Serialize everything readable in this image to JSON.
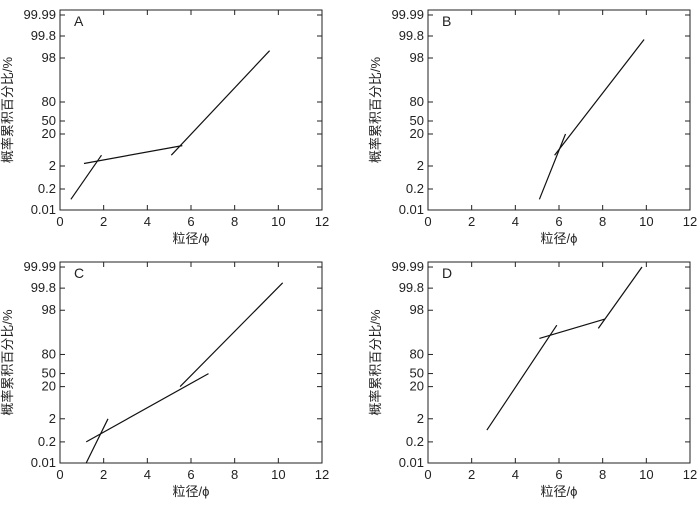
{
  "chart_data": [
    {
      "type": "line",
      "panel_label": "A",
      "xlabel": "粒径/ϕ",
      "ylabel": "概率累积百分比/%",
      "xlim": [
        0,
        12
      ],
      "x_ticks": [
        0,
        2,
        4,
        6,
        8,
        10,
        12
      ],
      "y_scale": "probability",
      "y_ticks": [
        0.01,
        0.2,
        2,
        20,
        50,
        80,
        98,
        99.8,
        99.99
      ],
      "series": [
        {
          "x": [
            0.5,
            1.9
          ],
          "y": [
            0.05,
            5
          ]
        },
        {
          "x": [
            1.1,
            5.6
          ],
          "y": [
            2.5,
            10
          ]
        },
        {
          "x": [
            5.1,
            9.6
          ],
          "y": [
            5,
            99
          ]
        }
      ]
    },
    {
      "type": "line",
      "panel_label": "B",
      "xlabel": "粒径/ϕ",
      "ylabel": "概率累积百分比/%",
      "xlim": [
        0,
        12
      ],
      "x_ticks": [
        0,
        2,
        4,
        6,
        8,
        10,
        12
      ],
      "y_scale": "probability",
      "y_ticks": [
        0.01,
        0.2,
        2,
        20,
        50,
        80,
        98,
        99.8,
        99.99
      ],
      "series": [
        {
          "x": [
            5.1,
            6.3
          ],
          "y": [
            0.05,
            20
          ]
        },
        {
          "x": [
            5.8,
            9.9
          ],
          "y": [
            5,
            99.7
          ]
        }
      ]
    },
    {
      "type": "line",
      "panel_label": "C",
      "xlabel": "粒径/ϕ",
      "ylabel": "概率累积百分比/%",
      "xlim": [
        0,
        12
      ],
      "x_ticks": [
        0,
        2,
        4,
        6,
        8,
        10,
        12
      ],
      "y_scale": "probability",
      "y_ticks": [
        0.01,
        0.2,
        2,
        20,
        50,
        80,
        98,
        99.8,
        99.99
      ],
      "series": [
        {
          "x": [
            1.2,
            2.2
          ],
          "y": [
            0.01,
            2
          ]
        },
        {
          "x": [
            1.2,
            6.8
          ],
          "y": [
            0.2,
            50
          ]
        },
        {
          "x": [
            5.5,
            10.2
          ],
          "y": [
            20,
            99.9
          ]
        }
      ]
    },
    {
      "type": "line",
      "panel_label": "D",
      "xlabel": "粒径/ϕ",
      "ylabel": "概率累积百分比/%",
      "xlim": [
        0,
        12
      ],
      "x_ticks": [
        0,
        2,
        4,
        6,
        8,
        10,
        12
      ],
      "y_scale": "probability",
      "y_ticks": [
        0.01,
        0.2,
        2,
        20,
        50,
        80,
        98,
        99.8,
        99.99
      ],
      "series": [
        {
          "x": [
            2.7,
            5.9
          ],
          "y": [
            0.7,
            95
          ]
        },
        {
          "x": [
            5.1,
            8.1
          ],
          "y": [
            90,
            96.5
          ]
        },
        {
          "x": [
            7.8,
            9.8
          ],
          "y": [
            94,
            99.99
          ]
        }
      ]
    }
  ]
}
